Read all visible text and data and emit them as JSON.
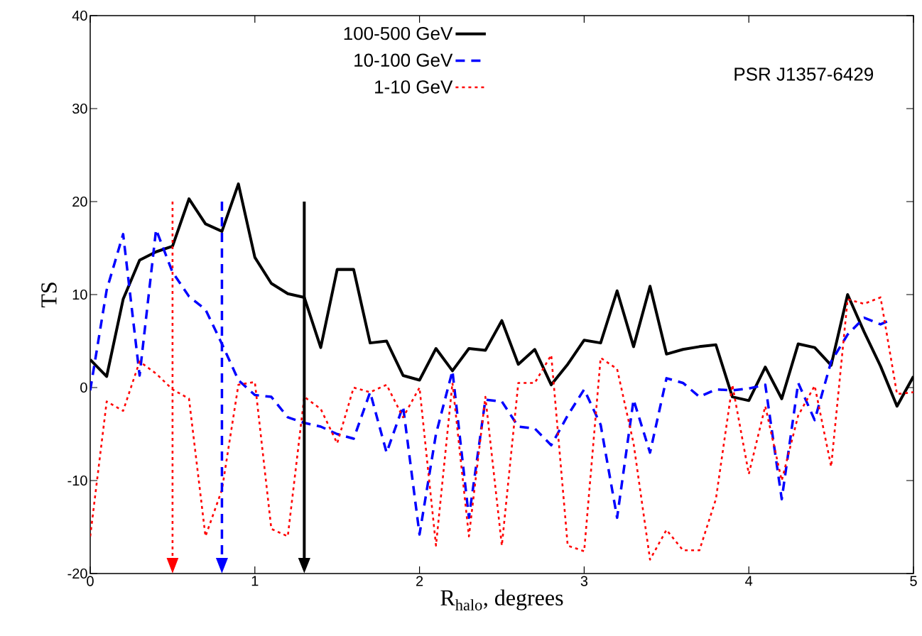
{
  "chart_data": {
    "type": "line",
    "xlabel": "R$_{halo}$, degrees",
    "ylabel": "TS",
    "annotations": [
      "PSR J1357-6429"
    ],
    "xlim": [
      0,
      5
    ],
    "ylim": [
      -20,
      40
    ],
    "xticks": [
      0,
      1,
      2,
      3,
      4,
      5
    ],
    "yticks": [
      -20,
      -10,
      0,
      10,
      20,
      30,
      40
    ],
    "grid": false,
    "legend": "top",
    "marker": "none",
    "series": [
      {
        "name": "100-500 GeV",
        "color": "#000000",
        "line_style": "solid",
        "x": [
          0,
          0.1,
          0.2,
          0.3,
          0.4,
          0.5,
          0.6,
          0.7,
          0.8,
          0.9,
          1.0,
          1.1,
          1.2,
          1.3,
          1.4,
          1.5,
          1.6,
          1.7,
          1.8,
          1.9,
          2.0,
          2.1,
          2.2,
          2.3,
          2.4,
          2.5,
          2.6,
          2.7,
          2.8,
          2.9,
          3.0,
          3.1,
          3.2,
          3.3,
          3.4,
          3.5,
          3.6,
          3.7,
          3.8,
          3.9,
          4.0,
          4.1,
          4.2,
          4.3,
          4.4,
          4.5,
          4.6,
          4.7,
          4.8,
          4.9,
          5.0
        ],
        "values": [
          3,
          1.2,
          9.5,
          13.7,
          14.6,
          15.2,
          20.3,
          17.6,
          16.8,
          21.9,
          14,
          11.2,
          10.1,
          9.7,
          4.3,
          12.7,
          12.7,
          4.8,
          5,
          1.3,
          0.8,
          4.2,
          1.8,
          4.2,
          4,
          7.2,
          2.5,
          4.1,
          0.3,
          2.5,
          5.1,
          4.8,
          10.4,
          4.4,
          10.9,
          3.6,
          4.1,
          4.4,
          4.6,
          -1,
          -1.4,
          2.2,
          -1.2,
          4.7,
          4.3,
          2.4,
          10,
          6,
          2.3,
          -2,
          1.2
        ]
      },
      {
        "name": "10-100 GeV",
        "color": "#0000ff",
        "line_style": "dashed",
        "x": [
          0,
          0.1,
          0.2,
          0.3,
          0.4,
          0.5,
          0.6,
          0.7,
          0.8,
          0.9,
          1.0,
          1.1,
          1.2,
          1.3,
          1.4,
          1.5,
          1.6,
          1.7,
          1.8,
          1.9,
          2.0,
          2.1,
          2.2,
          2.3,
          2.4,
          2.5,
          2.6,
          2.7,
          2.8,
          2.9,
          3.0,
          3.1,
          3.2,
          3.3,
          3.4,
          3.5,
          3.6,
          3.7,
          3.8,
          3.9,
          4.0,
          4.1,
          4.2,
          4.3,
          4.4,
          4.5,
          4.6,
          4.7,
          4.8,
          4.85
        ],
        "values": [
          -0.3,
          10.5,
          16.5,
          1.3,
          17,
          12.4,
          9.8,
          8.4,
          4.7,
          0.8,
          -0.8,
          -1,
          -3.2,
          -3.8,
          -4.2,
          -5,
          -5.5,
          -0.5,
          -7,
          -2,
          -15.8,
          -5,
          1.8,
          -14,
          -1.3,
          -1.5,
          -4.2,
          -4.4,
          -6.2,
          -3,
          -0.2,
          -4,
          -14,
          -1.3,
          -7,
          1,
          0.5,
          -1,
          -0.2,
          -0.3,
          -0.1,
          0.3,
          -12,
          0.5,
          -3.5,
          2.8,
          5.7,
          7.5,
          6.8,
          7.2
        ]
      },
      {
        "name": "1-10 GeV",
        "color": "#ff0000",
        "line_style": "dotted",
        "x": [
          0,
          0.1,
          0.2,
          0.3,
          0.4,
          0.5,
          0.6,
          0.7,
          0.8,
          0.9,
          1.0,
          1.1,
          1.2,
          1.3,
          1.4,
          1.5,
          1.6,
          1.7,
          1.8,
          1.9,
          2.0,
          2.1,
          2.2,
          2.3,
          2.4,
          2.5,
          2.6,
          2.7,
          2.8,
          2.9,
          3.0,
          3.1,
          3.2,
          3.3,
          3.4,
          3.5,
          3.6,
          3.7,
          3.8,
          3.9,
          4.0,
          4.1,
          4.2,
          4.3,
          4.4,
          4.5,
          4.6,
          4.7,
          4.8,
          4.9,
          5.0
        ],
        "values": [
          -16,
          -1.5,
          -2.5,
          2.8,
          1.5,
          -0.2,
          -1.2,
          -16,
          -11,
          0.3,
          0.6,
          -15.2,
          -16,
          -1,
          -2.3,
          -6,
          0,
          -0.5,
          0.3,
          -3.2,
          0,
          -17,
          0.5,
          -16,
          -1,
          -17,
          0.5,
          0.5,
          3.5,
          -17,
          -17.6,
          3.2,
          2,
          -6,
          -18.5,
          -15.3,
          -17.5,
          -17.5,
          -12,
          0.3,
          -9.3,
          -2,
          -10,
          -3,
          0.2,
          -8.5,
          9.5,
          9,
          9.7,
          -0.7,
          -0.5
        ]
      }
    ],
    "ref_lines": [
      {
        "axis": "x",
        "value": 0.5,
        "color": "#ff0000",
        "line_style": "dotted"
      },
      {
        "axis": "x",
        "value": 0.8,
        "color": "#0000ff",
        "line_style": "dashed"
      },
      {
        "axis": "x",
        "value": 1.3,
        "color": "#000000",
        "line_style": "solid"
      }
    ]
  }
}
